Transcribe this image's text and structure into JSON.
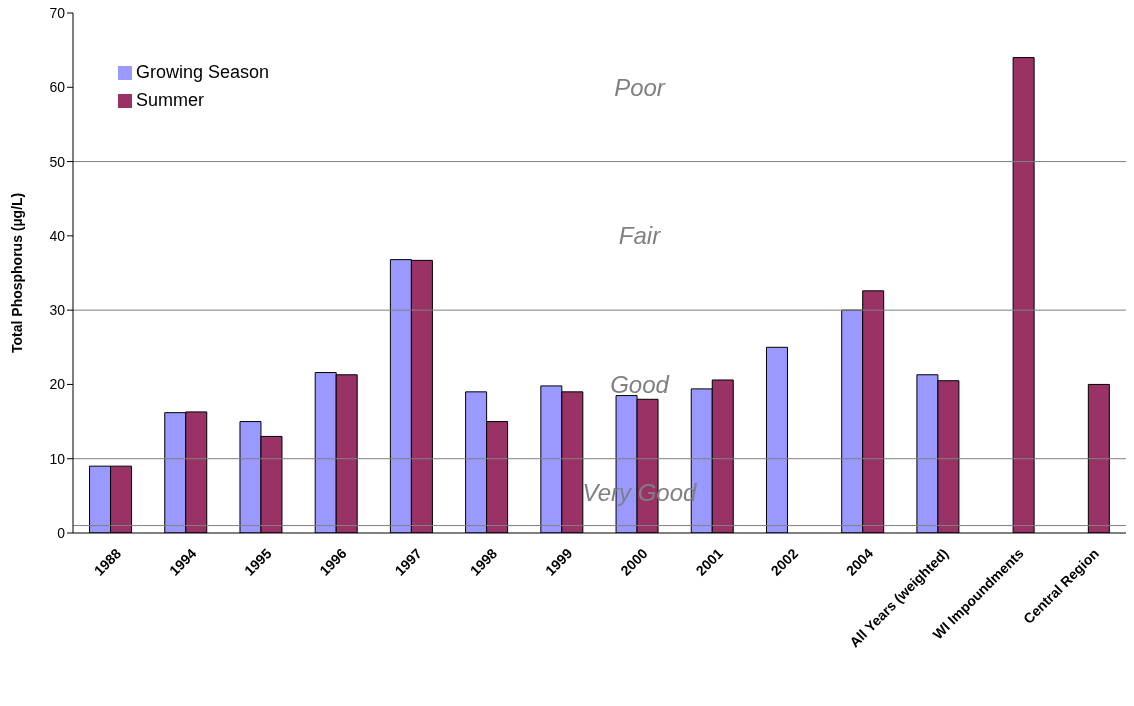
{
  "chart_data": {
    "type": "bar",
    "ylabel": "Total Phosphorus (µg/L)",
    "categories": [
      "1988",
      "1994",
      "1995",
      "1996",
      "1997",
      "1998",
      "1999",
      "2000",
      "2001",
      "2002",
      "2004",
      "All Years (weighted)",
      "WI Impoundments",
      "Central Region"
    ],
    "series": [
      {
        "name": "Growing Season",
        "color": "#9999ff",
        "values": [
          9,
          16.2,
          15,
          21.6,
          36.8,
          19,
          19.8,
          18.5,
          19.4,
          25,
          30,
          21.3,
          null,
          null
        ]
      },
      {
        "name": "Summer",
        "color": "#993366",
        "values": [
          9,
          16.3,
          13,
          21.3,
          36.7,
          15,
          19,
          18,
          20.6,
          null,
          32.6,
          20.5,
          64,
          20
        ]
      }
    ],
    "ylim": [
      0,
      70
    ],
    "yticks": [
      0,
      10,
      20,
      30,
      40,
      50,
      60,
      70
    ],
    "grid": false,
    "legend": "top left",
    "ref_lines": [
      {
        "axis": "y",
        "value": 50,
        "color": "#808080",
        "label": "Poor"
      },
      {
        "axis": "y",
        "value": 30,
        "color": "#808080",
        "label": "Fair"
      },
      {
        "axis": "y",
        "value": 10,
        "color": "#808080",
        "label": "Good"
      },
      {
        "axis": "y",
        "value": 1,
        "color": "#808080",
        "label": "Very Good"
      }
    ]
  }
}
